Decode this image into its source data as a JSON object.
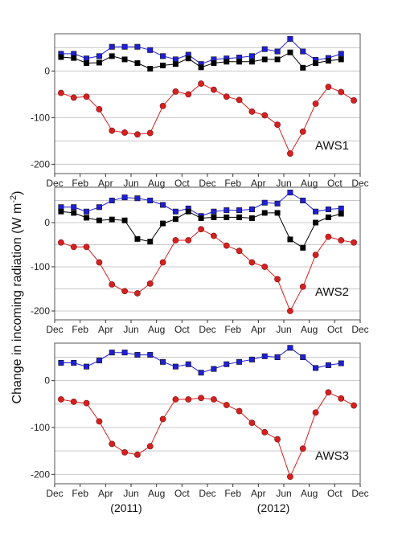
{
  "chart_data": {
    "type": "line",
    "ylabel_main": "Change in incoming radiation (W m",
    "ylabel_exp": "-2",
    "ylabel_close": ")",
    "x_tick_labels": [
      "Dec",
      "Feb",
      "Apr",
      "Jun",
      "Aug",
      "Oct",
      "Dec",
      "Feb",
      "Apr",
      "Jun",
      "Aug",
      "Oct",
      "Dec"
    ],
    "year_labels": [
      "(2011)",
      "(2012)"
    ],
    "colors": {
      "blue": "#1f1fd6",
      "black": "#000000",
      "red": "#d62020",
      "grid": "#c8c8c8"
    },
    "panels": [
      {
        "label": "AWS1",
        "ylim": [
          -220,
          80
        ],
        "yticks": [
          -200,
          -100,
          0
        ],
        "series": [
          {
            "color": "blue",
            "marker": "square",
            "values": [
              37,
              37,
              27,
              32,
              52,
              52,
              52,
              45,
              32,
              25,
              35,
              15,
              25,
              27,
              29,
              32,
              47,
              42,
              69,
              42,
              24,
              28,
              37
            ]
          },
          {
            "color": "black",
            "marker": "square",
            "values": [
              30,
              28,
              17,
              18,
              32,
              25,
              17,
              5,
              12,
              15,
              27,
              8,
              17,
              20,
              20,
              20,
              25,
              25,
              40,
              7,
              17,
              22,
              25
            ]
          },
          {
            "color": "red",
            "marker": "circle",
            "values": [
              -47,
              -57,
              -55,
              -82,
              -128,
              -132,
              -136,
              -133,
              -75,
              -44,
              -50,
              -27,
              -40,
              -55,
              -62,
              -87,
              -95,
              -115,
              -177,
              -130,
              -70,
              -34,
              -45,
              -63
            ]
          }
        ]
      },
      {
        "label": "AWS2",
        "ylim": [
          -220,
          80
        ],
        "yticks": [
          -200,
          -100,
          0
        ],
        "series": [
          {
            "color": "blue",
            "marker": "square",
            "values": [
              35,
              35,
              25,
              35,
              50,
              57,
              55,
              50,
              40,
              25,
              32,
              15,
              25,
              28,
              28,
              30,
              45,
              43,
              68,
              50,
              25,
              30,
              32
            ]
          },
          {
            "color": "black",
            "marker": "square",
            "values": [
              25,
              22,
              11,
              5,
              7,
              5,
              -37,
              -43,
              -2,
              8,
              25,
              10,
              12,
              12,
              12,
              10,
              22,
              22,
              -38,
              -57,
              0,
              12,
              20
            ]
          },
          {
            "color": "red",
            "marker": "circle",
            "values": [
              -45,
              -55,
              -55,
              -90,
              -140,
              -155,
              -160,
              -138,
              -90,
              -40,
              -40,
              -15,
              -30,
              -52,
              -64,
              -90,
              -100,
              -128,
              -200,
              -145,
              -73,
              -32,
              -40,
              -45
            ]
          }
        ]
      },
      {
        "label": "AWS3",
        "ylim": [
          -220,
          80
        ],
        "yticks": [
          -200,
          -100,
          0
        ],
        "series": [
          {
            "color": "blue",
            "marker": "square",
            "values": [
              38,
              38,
              30,
              43,
              60,
              60,
              55,
              55,
              40,
              30,
              35,
              17,
              25,
              35,
              40,
              45,
              52,
              50,
              70,
              50,
              27,
              33,
              37
            ]
          },
          {
            "color": "red",
            "marker": "circle",
            "values": [
              -40,
              -45,
              -48,
              -87,
              -135,
              -153,
              -158,
              -140,
              -82,
              -40,
              -40,
              -37,
              -40,
              -52,
              -65,
              -90,
              -110,
              -125,
              -205,
              -145,
              -68,
              -25,
              -38,
              -53
            ]
          }
        ]
      }
    ]
  }
}
